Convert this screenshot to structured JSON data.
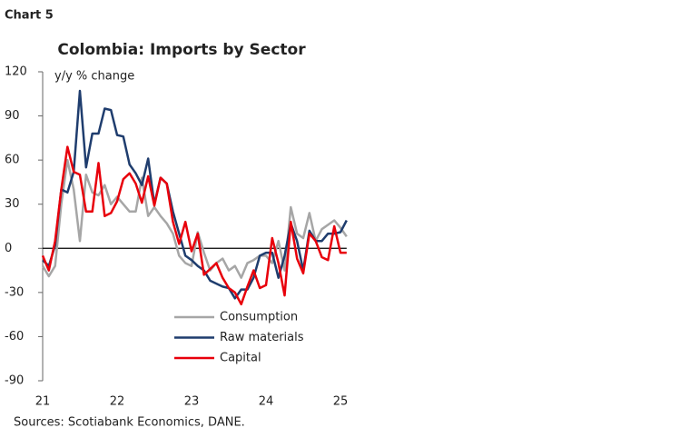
{
  "chart_data": {
    "type": "line",
    "label": "Chart 5",
    "title": "Colombia: Imports by Sector",
    "y_label": "y/y % change",
    "source": "Sources: Scotiabank Economics, DANE.",
    "categories": [
      "21",
      null,
      null,
      null,
      null,
      null,
      null,
      null,
      null,
      null,
      null,
      null,
      "22",
      null,
      null,
      null,
      null,
      null,
      null,
      null,
      null,
      null,
      null,
      null,
      "23",
      null,
      null,
      null,
      null,
      null,
      null,
      null,
      null,
      null,
      null,
      null,
      "24",
      null,
      null,
      null,
      null,
      null,
      null,
      null,
      null,
      null,
      null,
      null,
      "25",
      null
    ],
    "series": [
      {
        "name": "Consumption",
        "color": "#a6a6a6",
        "values": [
          -12,
          -19,
          -12,
          30,
          60,
          40,
          5,
          50,
          38,
          36,
          43,
          30,
          35,
          30,
          25,
          25,
          48,
          22,
          28,
          22,
          17,
          10,
          -5,
          -10,
          -12,
          11,
          -3,
          -15,
          -10,
          -7,
          -15,
          -12,
          -20,
          -10,
          -8,
          -5,
          -5,
          -10,
          5,
          -15,
          28,
          10,
          7,
          24,
          5,
          13,
          16,
          19,
          14,
          8
        ]
      },
      {
        "name": "Raw materials",
        "color": "#1f3d6e",
        "values": [
          -8,
          -12,
          2,
          40,
          38,
          52,
          107,
          55,
          78,
          78,
          95,
          94,
          77,
          76,
          57,
          51,
          43,
          61,
          30,
          48,
          44,
          25,
          10,
          -5,
          -8,
          -12,
          -15,
          -22,
          -24,
          -26,
          -27,
          -34,
          -28,
          -28,
          -20,
          -5,
          -3,
          -3,
          -20,
          -5,
          17,
          5,
          -15,
          12,
          5,
          5,
          10,
          10,
          11,
          19
        ]
      },
      {
        "name": "Capital",
        "color": "#e8000b",
        "values": [
          -5,
          -15,
          5,
          40,
          69,
          52,
          50,
          25,
          25,
          58,
          22,
          24,
          32,
          47,
          51,
          44,
          31,
          49,
          29,
          48,
          44,
          18,
          3,
          18,
          -2,
          10,
          -18,
          -14,
          -10,
          -20,
          -27,
          -30,
          -38,
          -26,
          -15,
          -27,
          -25,
          7,
          -10,
          -32,
          18,
          -7,
          -17,
          10,
          5,
          -6,
          -8,
          15,
          -3,
          -3
        ]
      }
    ],
    "ylim": [
      -90,
      120
    ],
    "yticks": [
      -90,
      -60,
      -30,
      0,
      30,
      60,
      90,
      120
    ]
  }
}
